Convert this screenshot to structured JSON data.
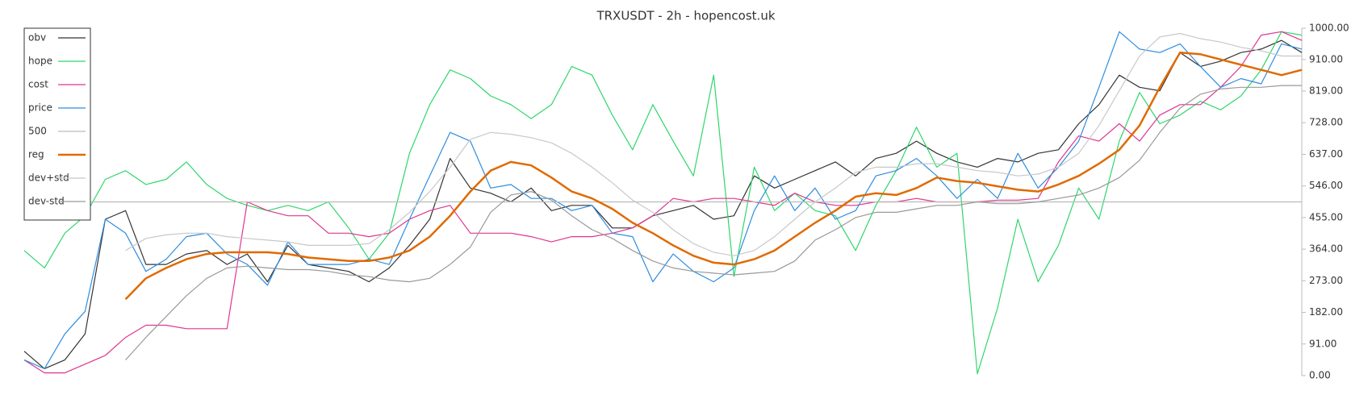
{
  "chart_data": {
    "type": "line",
    "title": "TRXUSDT - 2h - hopencost.uk",
    "legend": "upper left",
    "grid": false,
    "ylim": [
      0,
      1000
    ],
    "yticks": [
      {
        "value": 0,
        "label": "0.00"
      },
      {
        "value": 91,
        "label": "91.00"
      },
      {
        "value": 182,
        "label": "182.00"
      },
      {
        "value": 273,
        "label": "273.00"
      },
      {
        "value": 364,
        "label": "364.00"
      },
      {
        "value": 455,
        "label": "455.00"
      },
      {
        "value": 546,
        "label": "546.00"
      },
      {
        "value": 637,
        "label": "637.00"
      },
      {
        "value": 728,
        "label": "728.00"
      },
      {
        "value": 819,
        "label": "819.00"
      },
      {
        "value": 910,
        "label": "910.00"
      },
      {
        "value": 1000,
        "label": "1000.00"
      }
    ],
    "series": [
      {
        "name": "obv",
        "color": "#333333",
        "values": [
          70,
          20,
          45,
          120,
          450,
          475,
          320,
          320,
          350,
          360,
          320,
          350,
          270,
          375,
          320,
          310,
          300,
          270,
          310,
          375,
          450,
          625,
          540,
          525,
          500,
          540,
          475,
          490,
          490,
          425,
          425,
          460,
          475,
          490,
          450,
          460,
          575,
          540,
          565,
          590,
          615,
          575,
          625,
          640,
          675,
          640,
          615,
          600,
          625,
          615,
          640,
          650,
          725,
          780,
          865,
          830,
          820,
          930,
          890,
          905,
          930,
          940,
          965,
          930
        ]
      },
      {
        "name": "hope",
        "color": "#2fd66b",
        "values": [
          360,
          310,
          410,
          460,
          565,
          590,
          550,
          565,
          615,
          550,
          510,
          490,
          475,
          490,
          475,
          500,
          425,
          335,
          410,
          640,
          780,
          880,
          855,
          805,
          780,
          740,
          780,
          890,
          865,
          750,
          650,
          780,
          675,
          575,
          865,
          285,
          600,
          475,
          525,
          475,
          460,
          360,
          490,
          590,
          715,
          600,
          640,
          5,
          195,
          450,
          270,
          375,
          540,
          450,
          675,
          815,
          725,
          750,
          790,
          765,
          805,
          880,
          990,
          980
        ]
      },
      {
        "name": "cost",
        "color": "#e0358f",
        "values": [
          45,
          8,
          8,
          33,
          58,
          110,
          145,
          145,
          135,
          135,
          135,
          500,
          475,
          460,
          460,
          410,
          410,
          400,
          410,
          450,
          475,
          490,
          410,
          410,
          410,
          400,
          385,
          400,
          400,
          410,
          425,
          460,
          510,
          500,
          510,
          510,
          500,
          490,
          525,
          500,
          490,
          490,
          500,
          500,
          510,
          500,
          500,
          500,
          505,
          505,
          510,
          615,
          690,
          675,
          725,
          675,
          750,
          780,
          780,
          830,
          890,
          980,
          990,
          965
        ]
      },
      {
        "name": "price",
        "color": "#2f8de0",
        "values": [
          45,
          20,
          120,
          185,
          450,
          410,
          300,
          335,
          400,
          410,
          350,
          320,
          260,
          385,
          320,
          320,
          320,
          335,
          320,
          450,
          575,
          700,
          675,
          540,
          550,
          510,
          510,
          475,
          490,
          410,
          400,
          270,
          350,
          300,
          270,
          310,
          475,
          575,
          475,
          540,
          450,
          475,
          575,
          590,
          625,
          575,
          510,
          565,
          510,
          640,
          540,
          600,
          675,
          830,
          990,
          940,
          930,
          955,
          890,
          830,
          855,
          840,
          955,
          940
        ]
      },
      {
        "name": "500",
        "color": "#bbbbbb",
        "values": [
          500,
          500,
          500,
          500,
          500,
          500,
          500,
          500,
          500,
          500,
          500,
          500,
          500,
          500,
          500,
          500,
          500,
          500,
          500,
          500,
          500,
          500,
          500,
          500,
          500,
          500,
          500,
          500,
          500,
          500,
          500,
          500,
          500,
          500,
          500,
          500,
          500,
          500,
          500,
          500,
          500,
          500,
          500,
          500,
          500,
          500,
          500,
          500,
          500,
          500,
          500,
          500,
          500,
          500,
          500,
          500,
          500,
          500,
          500,
          500,
          500,
          500,
          500,
          500
        ]
      },
      {
        "name": "reg",
        "color": "#e06a00",
        "values": [
          null,
          null,
          null,
          null,
          null,
          220,
          280,
          310,
          335,
          350,
          355,
          355,
          355,
          350,
          340,
          335,
          330,
          330,
          340,
          360,
          400,
          460,
          530,
          590,
          615,
          605,
          570,
          530,
          510,
          480,
          440,
          410,
          375,
          345,
          325,
          320,
          335,
          360,
          400,
          440,
          475,
          515,
          525,
          520,
          540,
          570,
          560,
          555,
          545,
          535,
          530,
          550,
          575,
          610,
          650,
          720,
          830,
          930,
          925,
          910,
          895,
          880,
          865,
          880
        ]
      },
      {
        "name": "dev+std",
        "color": "#c8c8c8",
        "values": [
          null,
          null,
          null,
          null,
          null,
          360,
          395,
          405,
          410,
          410,
          400,
          395,
          390,
          385,
          375,
          375,
          375,
          380,
          420,
          470,
          530,
          600,
          680,
          700,
          695,
          685,
          670,
          640,
          600,
          555,
          505,
          470,
          420,
          380,
          355,
          345,
          360,
          400,
          450,
          500,
          540,
          585,
          600,
          600,
          610,
          610,
          600,
          590,
          585,
          575,
          580,
          600,
          640,
          720,
          820,
          920,
          975,
          985,
          970,
          960,
          945,
          935,
          920,
          920
        ]
      },
      {
        "name": "dev-std",
        "color": "#999999",
        "values": [
          null,
          null,
          null,
          null,
          null,
          45,
          110,
          170,
          230,
          280,
          310,
          315,
          310,
          305,
          305,
          300,
          290,
          285,
          275,
          270,
          280,
          320,
          370,
          470,
          520,
          530,
          505,
          460,
          420,
          395,
          360,
          330,
          310,
          300,
          295,
          290,
          295,
          300,
          330,
          390,
          420,
          455,
          470,
          470,
          480,
          490,
          490,
          500,
          495,
          495,
          500,
          510,
          520,
          540,
          570,
          620,
          700,
          770,
          810,
          825,
          830,
          830,
          835,
          835
        ]
      }
    ]
  }
}
